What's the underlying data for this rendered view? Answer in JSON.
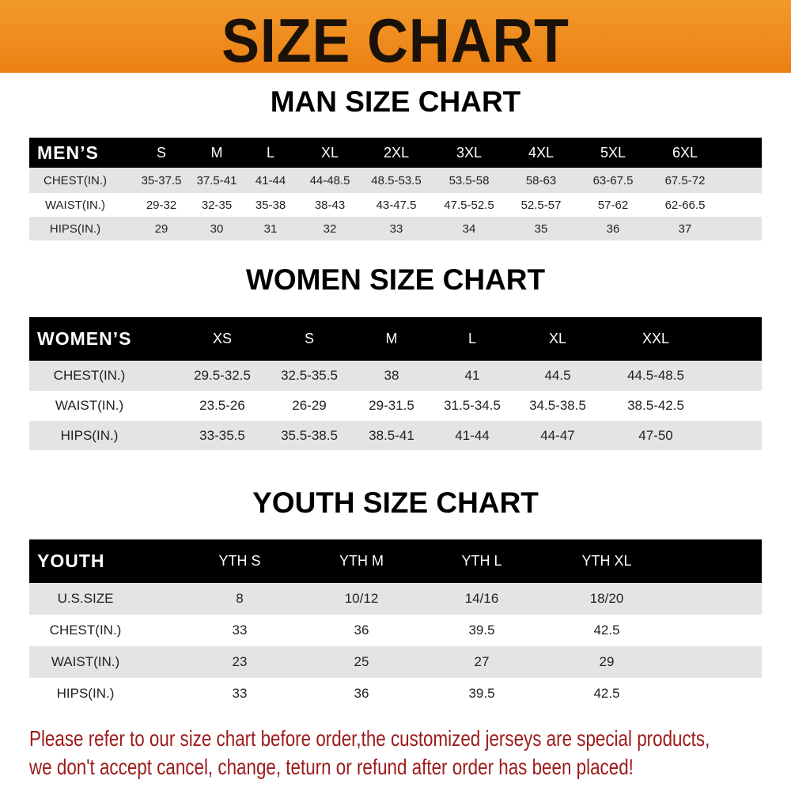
{
  "title": "SIZE CHART",
  "men": {
    "title": "MAN SIZE CHART",
    "header": [
      "MEN’S",
      "S",
      "M",
      "L",
      "XL",
      "2XL",
      "3XL",
      "4XL",
      "5XL",
      "6XL"
    ],
    "rows": [
      [
        "CHEST(IN.)",
        "35-37.5",
        "37.5-41",
        "41-44",
        "44-48.5",
        "48.5-53.5",
        "53.5-58",
        "58-63",
        "63-67.5",
        "67.5-72"
      ],
      [
        "WAIST(IN.)",
        "29-32",
        "32-35",
        "35-38",
        "38-43",
        "43-47.5",
        "47.5-52.5",
        "52.5-57",
        "57-62",
        "62-66.5"
      ],
      [
        "HIPS(IN.)",
        "29",
        "30",
        "31",
        "32",
        "33",
        "34",
        "35",
        "36",
        "37"
      ]
    ]
  },
  "women": {
    "title": "WOMEN SIZE CHART",
    "header": [
      "WOMEN’S",
      "XS",
      "S",
      "M",
      "L",
      "XL",
      "XXL"
    ],
    "rows": [
      [
        "CHEST(IN.)",
        "29.5-32.5",
        "32.5-35.5",
        "38",
        "41",
        "44.5",
        "44.5-48.5"
      ],
      [
        "WAIST(IN.)",
        "23.5-26",
        "26-29",
        "29-31.5",
        "31.5-34.5",
        "34.5-38.5",
        "38.5-42.5"
      ],
      [
        "HIPS(IN.)",
        "33-35.5",
        "35.5-38.5",
        "38.5-41",
        "41-44",
        "44-47",
        "47-50"
      ]
    ]
  },
  "youth": {
    "title": "YOUTH SIZE CHART",
    "header": [
      "YOUTH",
      "YTH S",
      "YTH M",
      "YTH L",
      "YTH XL"
    ],
    "rows": [
      [
        "U.S.SIZE",
        "8",
        "10/12",
        "14/16",
        "18/20"
      ],
      [
        "CHEST(IN.)",
        "33",
        "36",
        "39.5",
        "42.5"
      ],
      [
        "WAIST(IN.)",
        "23",
        "25",
        "27",
        "29"
      ],
      [
        "HIPS(IN.)",
        "33",
        "36",
        "39.5",
        "42.5"
      ]
    ]
  },
  "footer": {
    "line1": "Please refer to our size chart before order,the customized jerseys are special products,",
    "line2": "we don't accept cancel, change, teturn or refund after order has been placed!"
  },
  "colors": {
    "banner": "#ec7f12",
    "header_row": "#000000",
    "stripe": "#e4e4e4",
    "footer_text": "#9c1b1b"
  }
}
